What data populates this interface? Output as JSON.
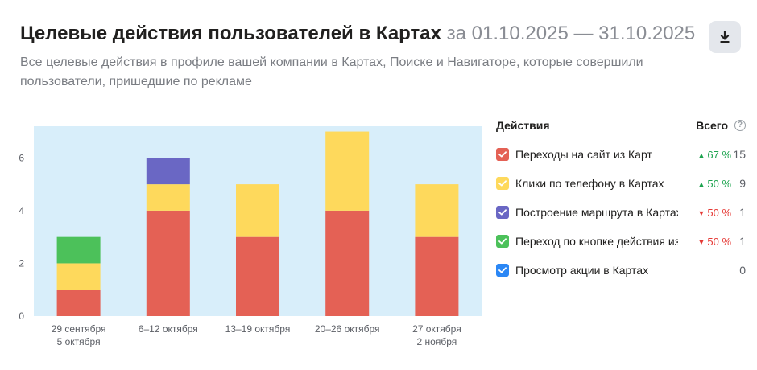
{
  "header": {
    "title": "Целевые действия пользователей в Картах",
    "period": "за 01.10.2025 — 31.10.2025",
    "subtitle": "Все целевые действия в профиле вашей компании в Картах, Поиске и Навигаторе, которые совершили пользователи, пришедшие по рекламе"
  },
  "toolbar": {
    "download_icon": "download-icon"
  },
  "legend": {
    "actions_header": "Действия",
    "total_header": "Всего",
    "help_symbol": "?",
    "items": [
      {
        "label": "Переходы на сайт из Карт",
        "color": "#e46155",
        "change": "67 %",
        "direction": "up",
        "arrow": "▲",
        "total": "15"
      },
      {
        "label": "Клики по телефону в Картах",
        "color": "#fed95c",
        "change": "50 %",
        "direction": "up",
        "arrow": "▲",
        "total": "9"
      },
      {
        "label": "Построение маршрута в Картах",
        "color": "#6a67c4",
        "change": "50 %",
        "direction": "down",
        "arrow": "▼",
        "total": "1"
      },
      {
        "label": "Переход по кнопке действия из Карт",
        "color": "#4cc15a",
        "change": "50 %",
        "direction": "down",
        "arrow": "▼",
        "total": "1"
      },
      {
        "label": "Просмотр акции в Картах",
        "color": "#2b87f5",
        "change": "",
        "direction": "",
        "arrow": "",
        "total": "0"
      }
    ]
  },
  "chart_data": {
    "type": "bar",
    "stacked": true,
    "categories": [
      [
        "29 сентября",
        "5 октября"
      ],
      [
        "6–12 октября"
      ],
      [
        "13–19 октября"
      ],
      [
        "20–26 октября"
      ],
      [
        "27 октября",
        "2 ноября"
      ]
    ],
    "series": [
      {
        "name": "Переходы на сайт из Карт",
        "color": "#e46155",
        "values": [
          1,
          4,
          3,
          4,
          3
        ]
      },
      {
        "name": "Клики по телефону в Картах",
        "color": "#fed95c",
        "values": [
          1,
          1,
          2,
          3,
          2
        ]
      },
      {
        "name": "Построение маршрута в Картах",
        "color": "#6a67c4",
        "values": [
          0,
          1,
          0,
          0,
          0
        ]
      },
      {
        "name": "Переход по кнопке действия из Карт",
        "color": "#4cc15a",
        "values": [
          1,
          0,
          0,
          0,
          0
        ]
      },
      {
        "name": "Просмотр акции в Картах",
        "color": "#2b87f5",
        "values": [
          0,
          0,
          0,
          0,
          0
        ]
      }
    ],
    "ylim": [
      0,
      7.2
    ],
    "yticks": [
      0,
      2,
      4,
      6
    ],
    "grid": false,
    "plot_background": "#d8eefa",
    "legend_position": "right"
  }
}
